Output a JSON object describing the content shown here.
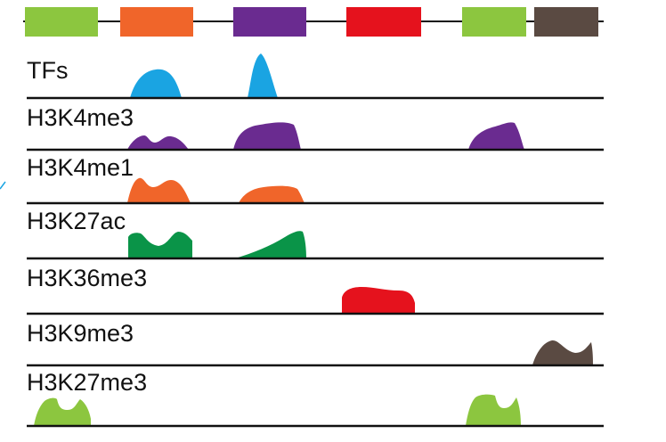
{
  "colors": {
    "lime": "#8cc63f",
    "orange": "#f0652a",
    "purple": "#6a2b90",
    "red": "#e5121d",
    "brown": "#5a4a42",
    "blue": "#1aa4e2",
    "green": "#0a9448",
    "line": "#111111"
  },
  "genome_blocks": [
    {
      "color": "lime"
    },
    {
      "color": "orange"
    },
    {
      "color": "purple"
    },
    {
      "color": "red"
    },
    {
      "color": "lime"
    },
    {
      "color": "brown"
    }
  ],
  "tracks": [
    {
      "label": "TFs",
      "color": "blue"
    },
    {
      "label": "H3K4me3",
      "color": "purple"
    },
    {
      "label": "H3K4me1",
      "color": "orange"
    },
    {
      "label": "H3K27ac",
      "color": "green"
    },
    {
      "label": "H3K36me3",
      "color": "red"
    },
    {
      "label": "H3K9me3",
      "color": "brown"
    },
    {
      "label": "H3K27me3",
      "color": "lime"
    }
  ]
}
